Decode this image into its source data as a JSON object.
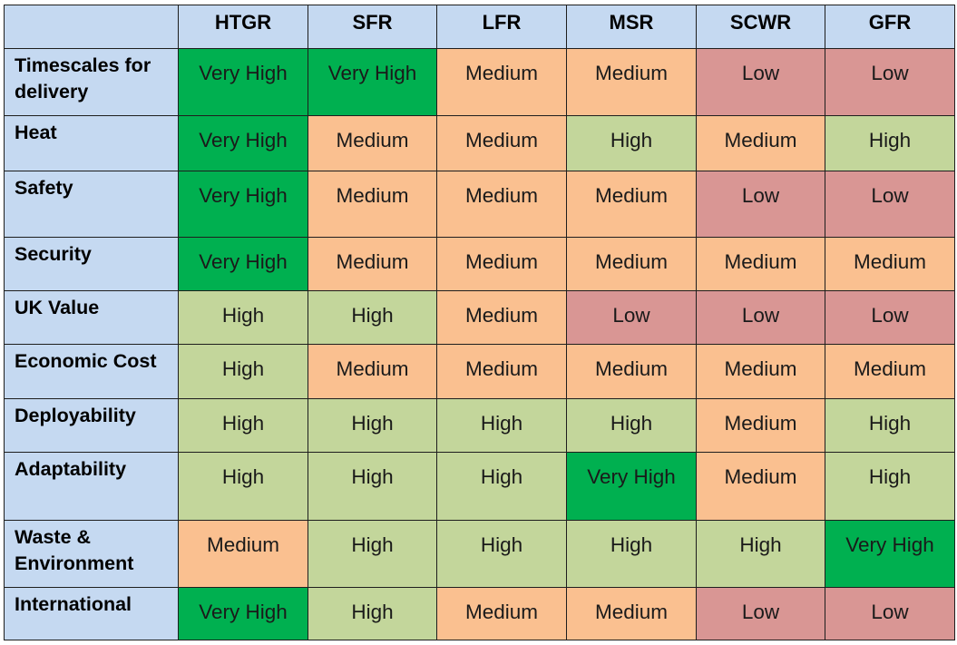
{
  "chart_data": {
    "type": "table",
    "columns": [
      "HTGR",
      "SFR",
      "LFR",
      "MSR",
      "SCWR",
      "GFR"
    ],
    "rows": [
      {
        "label": "Timescales for delivery",
        "values": [
          "Very High",
          "Very High",
          "Medium",
          "Medium",
          "Low",
          "Low"
        ]
      },
      {
        "label": "Heat",
        "values": [
          "Very High",
          "Medium",
          "Medium",
          "High",
          "Medium",
          "High"
        ]
      },
      {
        "label": "Safety",
        "values": [
          "Very High",
          "Medium",
          "Medium",
          "Medium",
          "Low",
          "Low"
        ]
      },
      {
        "label": "Security",
        "values": [
          "Very High",
          "Medium",
          "Medium",
          "Medium",
          "Medium",
          "Medium"
        ]
      },
      {
        "label": "UK Value",
        "values": [
          "High",
          "High",
          "Medium",
          "Low",
          "Low",
          "Low"
        ]
      },
      {
        "label": "Economic Cost",
        "values": [
          "High",
          "Medium",
          "Medium",
          "Medium",
          "Medium",
          "Medium"
        ]
      },
      {
        "label": "Deployability",
        "values": [
          "High",
          "High",
          "High",
          "High",
          "Medium",
          "High"
        ]
      },
      {
        "label": "Adaptability",
        "values": [
          "High",
          "High",
          "High",
          "Very High",
          "Medium",
          "High"
        ]
      },
      {
        "label": "Waste & Environment",
        "values": [
          "Medium",
          "High",
          "High",
          "High",
          "High",
          "Very High"
        ]
      },
      {
        "label": "International",
        "values": [
          "Very High",
          "High",
          "Medium",
          "Medium",
          "Low",
          "Low"
        ]
      }
    ],
    "rating_colors": {
      "Very High": "#00b050",
      "High": "#c3d69b",
      "Medium": "#fac090",
      "Low": "#d99694"
    },
    "header_color": "#c5d9f1"
  }
}
